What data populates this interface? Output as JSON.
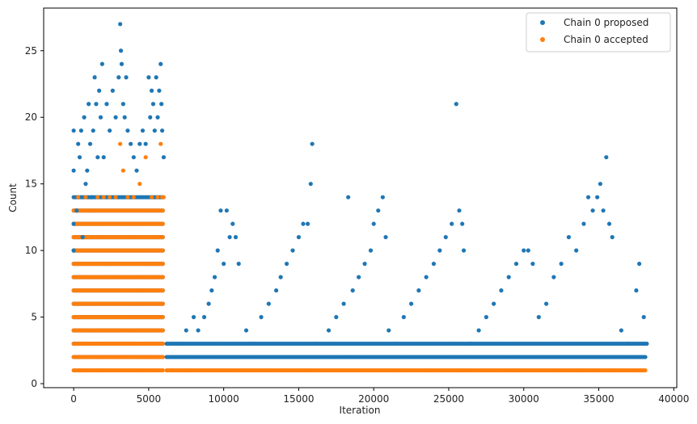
{
  "chart_data": {
    "type": "scatter",
    "xlabel": "Iteration",
    "ylabel": "Count",
    "xlim": [
      -2000,
      40200
    ],
    "ylim": [
      -0.3,
      28.2
    ],
    "xticks": [
      0,
      5000,
      10000,
      15000,
      20000,
      25000,
      30000,
      35000,
      40000
    ],
    "yticks": [
      0,
      5,
      10,
      15,
      20,
      25
    ],
    "grid": false,
    "legend_position": "top-right",
    "series": [
      {
        "name": "Chain 0 proposed",
        "color": "#1f77b4",
        "points": [
          [
            0,
            10
          ],
          [
            0,
            12
          ],
          [
            0,
            16
          ],
          [
            0,
            19
          ],
          [
            200,
            13
          ],
          [
            300,
            18
          ],
          [
            400,
            17
          ],
          [
            500,
            19
          ],
          [
            600,
            11
          ],
          [
            700,
            20
          ],
          [
            800,
            15
          ],
          [
            900,
            16
          ],
          [
            1000,
            21
          ],
          [
            1100,
            18
          ],
          [
            1200,
            14
          ],
          [
            1300,
            19
          ],
          [
            1400,
            23
          ],
          [
            1500,
            21
          ],
          [
            1600,
            17
          ],
          [
            1700,
            22
          ],
          [
            1800,
            20
          ],
          [
            1900,
            24
          ],
          [
            2000,
            17
          ],
          [
            2200,
            21
          ],
          [
            2400,
            19
          ],
          [
            2600,
            22
          ],
          [
            2800,
            20
          ],
          [
            3000,
            23
          ],
          [
            3100,
            27
          ],
          [
            3150,
            25
          ],
          [
            3200,
            24
          ],
          [
            3300,
            21
          ],
          [
            3400,
            20
          ],
          [
            3500,
            23
          ],
          [
            3600,
            19
          ],
          [
            3800,
            18
          ],
          [
            4000,
            17
          ],
          [
            4200,
            16
          ],
          [
            4400,
            18
          ],
          [
            4600,
            19
          ],
          [
            4800,
            18
          ],
          [
            5000,
            23
          ],
          [
            5100,
            20
          ],
          [
            5200,
            22
          ],
          [
            5300,
            21
          ],
          [
            5400,
            19
          ],
          [
            5500,
            23
          ],
          [
            5600,
            20
          ],
          [
            5700,
            22
          ],
          [
            5800,
            24
          ],
          [
            5850,
            21
          ],
          [
            5900,
            19
          ],
          [
            6000,
            17
          ],
          [
            7000,
            3
          ],
          [
            7500,
            4
          ],
          [
            8000,
            5
          ],
          [
            8300,
            4
          ],
          [
            8700,
            5
          ],
          [
            9000,
            6
          ],
          [
            9200,
            7
          ],
          [
            9400,
            8
          ],
          [
            9600,
            10
          ],
          [
            9800,
            13
          ],
          [
            10000,
            9
          ],
          [
            10200,
            13
          ],
          [
            10400,
            11
          ],
          [
            10600,
            12
          ],
          [
            10800,
            11
          ],
          [
            11000,
            9
          ],
          [
            11500,
            4
          ],
          [
            12000,
            3
          ],
          [
            12500,
            5
          ],
          [
            13000,
            6
          ],
          [
            13500,
            7
          ],
          [
            13800,
            8
          ],
          [
            14200,
            9
          ],
          [
            14600,
            10
          ],
          [
            15000,
            11
          ],
          [
            15300,
            12
          ],
          [
            15600,
            12
          ],
          [
            15800,
            15
          ],
          [
            15900,
            18
          ],
          [
            16200,
            3
          ],
          [
            17000,
            4
          ],
          [
            17500,
            5
          ],
          [
            18000,
            6
          ],
          [
            18300,
            14
          ],
          [
            18600,
            7
          ],
          [
            19000,
            8
          ],
          [
            19400,
            9
          ],
          [
            19800,
            10
          ],
          [
            20000,
            12
          ],
          [
            20300,
            13
          ],
          [
            20600,
            14
          ],
          [
            20800,
            11
          ],
          [
            21000,
            4
          ],
          [
            21500,
            3
          ],
          [
            22000,
            5
          ],
          [
            22500,
            6
          ],
          [
            23000,
            7
          ],
          [
            23500,
            8
          ],
          [
            24000,
            9
          ],
          [
            24400,
            10
          ],
          [
            24800,
            11
          ],
          [
            25200,
            12
          ],
          [
            25500,
            21
          ],
          [
            25700,
            13
          ],
          [
            25900,
            12
          ],
          [
            26000,
            10
          ],
          [
            26500,
            3
          ],
          [
            27000,
            4
          ],
          [
            27500,
            5
          ],
          [
            28000,
            6
          ],
          [
            28500,
            7
          ],
          [
            29000,
            8
          ],
          [
            29500,
            9
          ],
          [
            30000,
            10
          ],
          [
            30300,
            10
          ],
          [
            30600,
            9
          ],
          [
            31000,
            5
          ],
          [
            31500,
            6
          ],
          [
            32000,
            8
          ],
          [
            32500,
            9
          ],
          [
            33000,
            11
          ],
          [
            33500,
            10
          ],
          [
            34000,
            12
          ],
          [
            34300,
            14
          ],
          [
            34600,
            13
          ],
          [
            34900,
            14
          ],
          [
            35100,
            15
          ],
          [
            35300,
            13
          ],
          [
            35500,
            17
          ],
          [
            35700,
            12
          ],
          [
            35900,
            11
          ],
          [
            36500,
            4
          ],
          [
            37000,
            3
          ],
          [
            37500,
            7
          ],
          [
            37700,
            9
          ],
          [
            38000,
            5
          ],
          [
            38200,
            3
          ]
        ]
      },
      {
        "name": "Chain 0 accepted",
        "color": "#ff7f0e",
        "points": [
          [
            300,
            14
          ],
          [
            800,
            14
          ],
          [
            1200,
            13
          ],
          [
            1600,
            14
          ],
          [
            2000,
            14
          ],
          [
            2400,
            14
          ],
          [
            2800,
            14
          ],
          [
            3100,
            18
          ],
          [
            3300,
            16
          ],
          [
            3600,
            14
          ],
          [
            4000,
            14
          ],
          [
            4400,
            15
          ],
          [
            4800,
            17
          ],
          [
            5200,
            14
          ],
          [
            5600,
            14
          ],
          [
            5800,
            18
          ],
          [
            5900,
            14
          ],
          [
            6000,
            14
          ]
        ]
      }
    ],
    "dense_bands": [
      {
        "series": 0,
        "y_levels": [
          2,
          3,
          4,
          5,
          6,
          7,
          8,
          9,
          10,
          11,
          12,
          13,
          14
        ],
        "x_range": [
          0,
          6000
        ]
      },
      {
        "series": 1,
        "y_levels": [
          1,
          2,
          3,
          4,
          5,
          6,
          7,
          8,
          9,
          10,
          11,
          12,
          13
        ],
        "x_range": [
          0,
          6000
        ]
      },
      {
        "series": 0,
        "y_levels": [
          2,
          3
        ],
        "x_range": [
          6200,
          38200
        ]
      },
      {
        "series": 1,
        "y_levels": [
          1
        ],
        "x_range": [
          6200,
          38200
        ]
      }
    ]
  }
}
